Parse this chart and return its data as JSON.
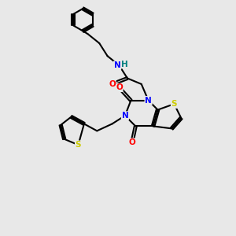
{
  "bg_color": "#e8e8e8",
  "bond_color": "#000000",
  "N_color": "#0000ff",
  "O_color": "#ff0000",
  "S_color": "#cccc00",
  "H_color": "#008080",
  "font_size": 7.5,
  "bond_width": 1.5,
  "dbo": 0.055,
  "xlim": [
    0,
    10
  ],
  "ylim": [
    0,
    10
  ]
}
